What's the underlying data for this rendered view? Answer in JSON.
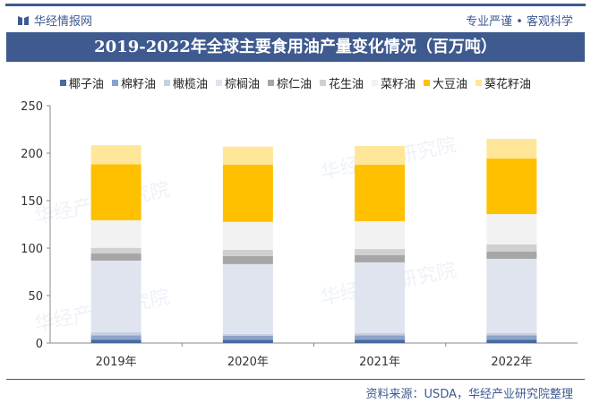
{
  "header": {
    "logo_text": "华经情报网",
    "slogan": "专业严谨 • 客观科学",
    "title": "2019-2022年全球主要食用油产量变化情况（百万吨）"
  },
  "footer": {
    "source": "资料来源：USDA，华经产业研究院整理"
  },
  "watermark": "华经产业研究院",
  "chart_data": {
    "type": "bar",
    "stacked": true,
    "title": "2019-2022年全球主要食用油产量变化情况（百万吨）",
    "categories": [
      "2019年",
      "2020年",
      "2021年",
      "2022年"
    ],
    "ylim": [
      0,
      250
    ],
    "yticks": [
      0,
      50,
      100,
      150,
      200,
      250
    ],
    "grid": false,
    "legend": "top",
    "series": [
      {
        "name": "椰子油",
        "color": "#4a6a9e",
        "values": [
          3.6,
          3.5,
          3.6,
          3.6
        ]
      },
      {
        "name": "棉籽油",
        "color": "#8ba3c9",
        "values": [
          4.5,
          4.3,
          4.6,
          4.5
        ]
      },
      {
        "name": "橄榄油",
        "color": "#c5d0e3",
        "values": [
          3.2,
          1.8,
          2.2,
          2.3
        ]
      },
      {
        "name": "棕榈油",
        "color": "#dfe4ef",
        "values": [
          75.5,
          73.5,
          74.6,
          78.3
        ]
      },
      {
        "name": "棕仁油",
        "color": "#a6a6a6",
        "values": [
          7.5,
          8.5,
          7.5,
          7.5
        ]
      },
      {
        "name": "花生油",
        "color": "#d0d0d0",
        "values": [
          6.0,
          6.5,
          6.5,
          7.6
        ]
      },
      {
        "name": "菜籽油",
        "color": "#f2f2f2",
        "values": [
          29.0,
          29.5,
          29.3,
          32.0
        ]
      },
      {
        "name": "大豆油",
        "color": "#ffc000",
        "values": [
          59.0,
          60.3,
          59.4,
          58.5
        ]
      },
      {
        "name": "葵花籽油",
        "color": "#ffe699",
        "values": [
          20.0,
          19.0,
          19.8,
          20.7
        ]
      }
    ]
  }
}
